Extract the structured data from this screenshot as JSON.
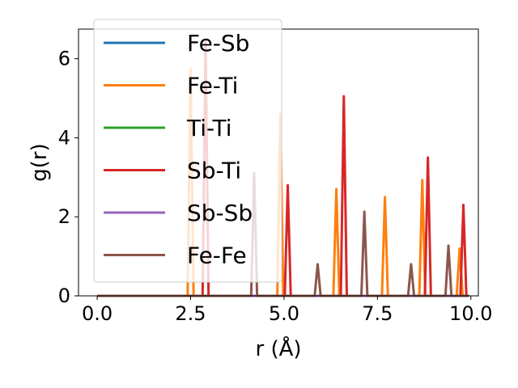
{
  "chart_data": {
    "type": "line",
    "xlabel": "r (Å)",
    "ylabel": "g(r)",
    "xlim": [
      -0.5,
      10.2
    ],
    "ylim": [
      0,
      6.75
    ],
    "xticks": [
      0.0,
      2.5,
      5.0,
      7.5,
      10.0
    ],
    "xtick_labels": [
      "0.0",
      "2.5",
      "5.0",
      "7.5",
      "10.0"
    ],
    "yticks": [
      0,
      2,
      4,
      6
    ],
    "ytick_labels": [
      "0",
      "2",
      "4",
      "6"
    ],
    "grid": false,
    "legend_position": "top-left",
    "peak_half_width": 0.08,
    "series": [
      {
        "name": "Fe-Sb",
        "color": "#1f77b4",
        "peaks": []
      },
      {
        "name": "Fe-Ti",
        "color": "#ff7f0e",
        "peaks": [
          [
            2.5,
            5.75
          ],
          [
            4.9,
            4.6
          ],
          [
            6.4,
            2.7
          ],
          [
            7.7,
            2.5
          ],
          [
            8.7,
            2.93
          ],
          [
            9.7,
            1.2
          ]
        ]
      },
      {
        "name": "Ti-Ti",
        "color": "#2ca02c",
        "peaks": []
      },
      {
        "name": "Sb-Ti",
        "color": "#d62728",
        "peaks": [
          [
            2.9,
            6.45
          ],
          [
            5.1,
            2.8
          ],
          [
            6.6,
            5.05
          ],
          [
            8.85,
            3.5
          ],
          [
            9.8,
            2.3
          ]
        ]
      },
      {
        "name": "Sb-Sb",
        "color": "#9467bd",
        "peaks": []
      },
      {
        "name": "Fe-Fe",
        "color": "#8c564b",
        "peaks": [
          [
            4.2,
            3.1
          ],
          [
            5.9,
            0.8
          ],
          [
            7.15,
            2.13
          ],
          [
            8.4,
            0.8
          ],
          [
            9.4,
            1.27
          ]
        ]
      }
    ]
  }
}
